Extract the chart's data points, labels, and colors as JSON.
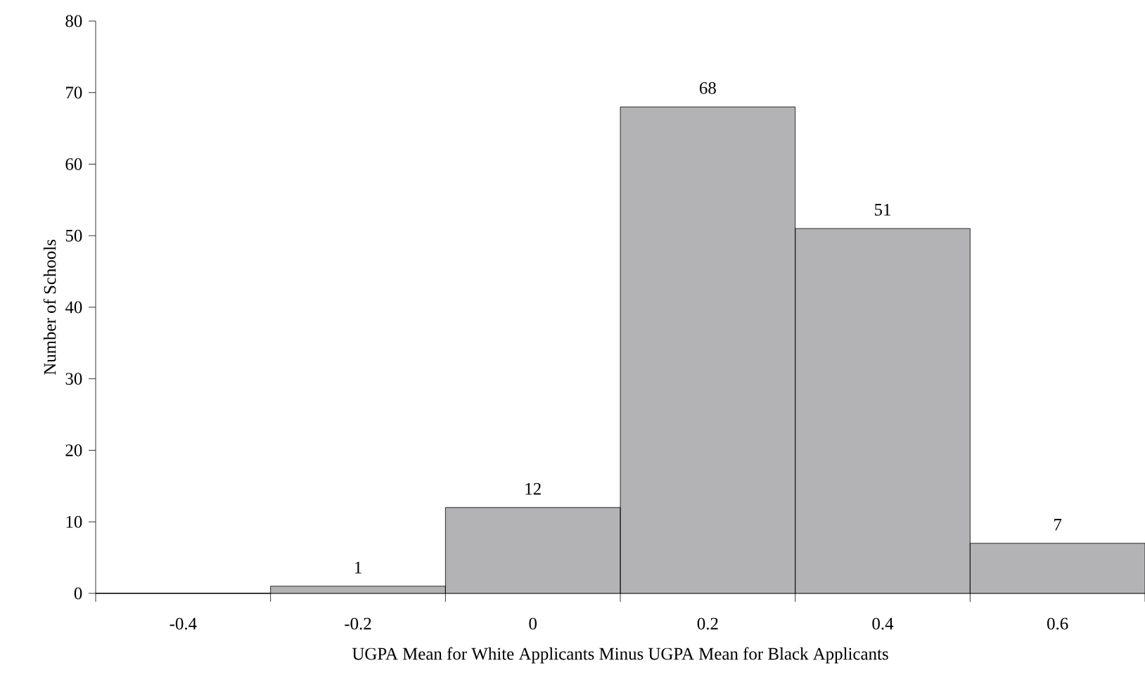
{
  "chart_data": {
    "type": "bar",
    "xlabel": "UGPA Mean for White Applicants Minus UGPA Mean for Black Applicants",
    "ylabel": "Number of Schools",
    "categories": [
      "-0.4",
      "-0.2",
      "0",
      "0.2",
      "0.4",
      "0.6"
    ],
    "values": [
      0,
      1,
      12,
      68,
      51,
      7
    ],
    "value_labels": [
      null,
      "1",
      "12",
      "68",
      "51",
      "7"
    ],
    "color": "#b3b3b6",
    "ylim": [
      0,
      80
    ],
    "yticks": [
      0,
      10,
      20,
      30,
      40,
      50,
      60,
      70,
      80
    ]
  }
}
